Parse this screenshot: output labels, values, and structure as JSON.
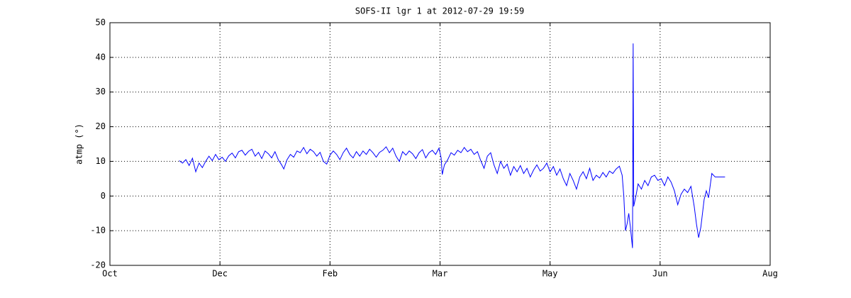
{
  "chart_data": {
    "type": "line",
    "title": "SOFS-II lgr 1 at 2012-07-29 19:59",
    "ylabel": "atmp (°)",
    "color": "#0000ff",
    "grid": true,
    "xlim": [
      0,
      6
    ],
    "xticks": [
      {
        "value": 0,
        "label": "Oct"
      },
      {
        "value": 1,
        "label": "Dec"
      },
      {
        "value": 2,
        "label": "Feb"
      },
      {
        "value": 3,
        "label": "Mar"
      },
      {
        "value": 4,
        "label": "May"
      },
      {
        "value": 5,
        "label": "Jun"
      },
      {
        "value": 6,
        "label": "Aug"
      }
    ],
    "ylim": [
      -20,
      50
    ],
    "yticks": [
      -20,
      -10,
      0,
      10,
      20,
      30,
      40,
      50
    ],
    "x": [
      0.63,
      0.66,
      0.69,
      0.72,
      0.75,
      0.78,
      0.81,
      0.84,
      0.87,
      0.9,
      0.93,
      0.96,
      0.99,
      1.02,
      1.05,
      1.08,
      1.11,
      1.14,
      1.17,
      1.2,
      1.23,
      1.26,
      1.29,
      1.32,
      1.35,
      1.38,
      1.41,
      1.44,
      1.47,
      1.5,
      1.53,
      1.56,
      1.58,
      1.61,
      1.64,
      1.67,
      1.7,
      1.73,
      1.76,
      1.79,
      1.82,
      1.85,
      1.88,
      1.91,
      1.94,
      1.97,
      2.0,
      2.03,
      2.06,
      2.09,
      2.12,
      2.15,
      2.18,
      2.21,
      2.24,
      2.27,
      2.3,
      2.33,
      2.36,
      2.39,
      2.42,
      2.45,
      2.48,
      2.51,
      2.54,
      2.57,
      2.6,
      2.63,
      2.66,
      2.69,
      2.72,
      2.75,
      2.78,
      2.81,
      2.84,
      2.87,
      2.9,
      2.93,
      2.96,
      2.99,
      3.01,
      3.02,
      3.04,
      3.07,
      3.1,
      3.13,
      3.16,
      3.19,
      3.22,
      3.25,
      3.28,
      3.31,
      3.34,
      3.37,
      3.4,
      3.43,
      3.46,
      3.49,
      3.52,
      3.55,
      3.58,
      3.61,
      3.64,
      3.67,
      3.7,
      3.73,
      3.76,
      3.79,
      3.82,
      3.85,
      3.88,
      3.91,
      3.94,
      3.97,
      4.0,
      4.03,
      4.06,
      4.09,
      4.12,
      4.15,
      4.18,
      4.21,
      4.24,
      4.27,
      4.3,
      4.33,
      4.36,
      4.39,
      4.42,
      4.45,
      4.48,
      4.51,
      4.54,
      4.57,
      4.6,
      4.63,
      4.655,
      4.67,
      4.685,
      4.7,
      4.715,
      4.73,
      4.749,
      4.755,
      4.76,
      4.78,
      4.8,
      4.83,
      4.86,
      4.89,
      4.92,
      4.95,
      4.98,
      5.01,
      5.04,
      5.07,
      5.1,
      5.13,
      5.16,
      5.19,
      5.22,
      5.25,
      5.28,
      5.31,
      5.33,
      5.35,
      5.37,
      5.4,
      5.42,
      5.44,
      5.47,
      5.5,
      5.59
    ],
    "values": [
      10.2,
      9.5,
      10.5,
      8.8,
      10.9,
      7.0,
      9.5,
      8.2,
      10.0,
      11.5,
      10.2,
      12.0,
      10.5,
      11.2,
      10.0,
      11.6,
      12.4,
      11.0,
      12.8,
      13.2,
      11.8,
      12.9,
      13.5,
      11.5,
      12.6,
      10.8,
      13.0,
      12.2,
      11.0,
      12.8,
      10.5,
      9.0,
      7.8,
      10.5,
      12.0,
      11.2,
      13.0,
      12.5,
      14.0,
      12.2,
      13.5,
      12.8,
      11.5,
      12.6,
      10.0,
      9.2,
      11.8,
      13.0,
      12.0,
      10.5,
      12.5,
      13.8,
      12.0,
      11.0,
      12.8,
      11.5,
      13.0,
      12.0,
      13.5,
      12.5,
      11.2,
      12.6,
      13.2,
      14.2,
      12.5,
      13.8,
      11.5,
      10.0,
      12.8,
      11.8,
      13.0,
      12.2,
      10.8,
      12.5,
      13.4,
      11.0,
      12.5,
      13.2,
      12.0,
      13.8,
      11.0,
      6.2,
      9.0,
      10.5,
      12.5,
      11.8,
      13.2,
      12.5,
      14.0,
      12.8,
      13.5,
      12.0,
      12.8,
      10.2,
      8.0,
      11.5,
      12.5,
      9.0,
      6.5,
      10.0,
      8.0,
      9.2,
      6.0,
      8.5,
      7.0,
      8.8,
      6.5,
      8.0,
      5.5,
      7.5,
      9.0,
      7.2,
      8.0,
      9.5,
      7.0,
      8.5,
      6.0,
      7.8,
      5.0,
      3.0,
      6.5,
      4.5,
      2.0,
      5.5,
      7.0,
      5.0,
      8.0,
      4.5,
      6.0,
      5.2,
      6.8,
      5.5,
      7.2,
      6.5,
      7.8,
      8.6,
      6.0,
      0.0,
      -10.0,
      -8.0,
      -5.0,
      -9.0,
      -15.0,
      44.0,
      -3.0,
      0.0,
      3.5,
      2.0,
      4.5,
      3.0,
      5.5,
      6.0,
      4.5,
      5.0,
      3.0,
      5.5,
      4.0,
      1.5,
      -2.5,
      0.5,
      2.0,
      1.0,
      2.8,
      -3.0,
      -8.0,
      -12.0,
      -9.0,
      -1.0,
      1.5,
      -0.5,
      6.5,
      5.5,
      5.5
    ]
  }
}
